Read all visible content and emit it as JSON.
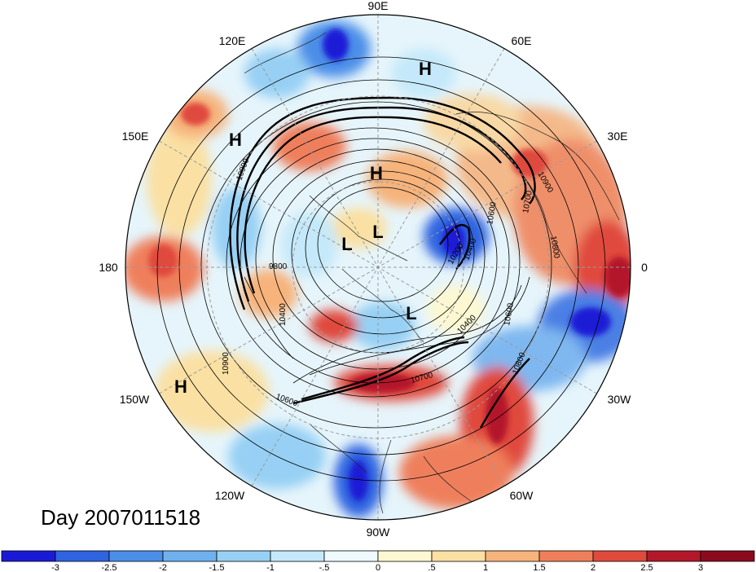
{
  "title": "Day 2007011518",
  "projection": "north polar stereographic",
  "longitude_labels": [
    "90E",
    "60E",
    "30E",
    "0",
    "30W",
    "60W",
    "90W",
    "120W",
    "150W",
    "180",
    "150E",
    "120E"
  ],
  "pressure_centers": [
    {
      "type": "H",
      "name": "high-siberia"
    },
    {
      "type": "H",
      "name": "high-east-asia"
    },
    {
      "type": "H",
      "name": "high-arctic"
    },
    {
      "type": "L",
      "name": "low-1"
    },
    {
      "type": "L",
      "name": "low-2"
    },
    {
      "type": "L",
      "name": "low-3"
    },
    {
      "type": "H",
      "name": "high-pacific"
    }
  ],
  "contour_labels": [
    "10900",
    "10900",
    "10700",
    "10800",
    "10600",
    "10400",
    "10200",
    "9800",
    "10400",
    "10900",
    "10600",
    "10700",
    "10600",
    "10400",
    "10800"
  ],
  "colorbar": {
    "tick_labels": [
      "-3",
      "-2.5",
      "-2",
      "-1.5",
      "-1",
      "-.5",
      "0",
      ".5",
      "1",
      "1.5",
      "2",
      "2.5",
      "3"
    ],
    "colors": [
      "#1a1ad6",
      "#2f63e0",
      "#4b8ee8",
      "#6fb1ef",
      "#97d0f4",
      "#c5e9fa",
      "#eefafe",
      "#fdf8d2",
      "#fae0a3",
      "#f6b37c",
      "#ef7f5b",
      "#e04a3c",
      "#b3182a",
      "#8c0a1e"
    ]
  }
}
